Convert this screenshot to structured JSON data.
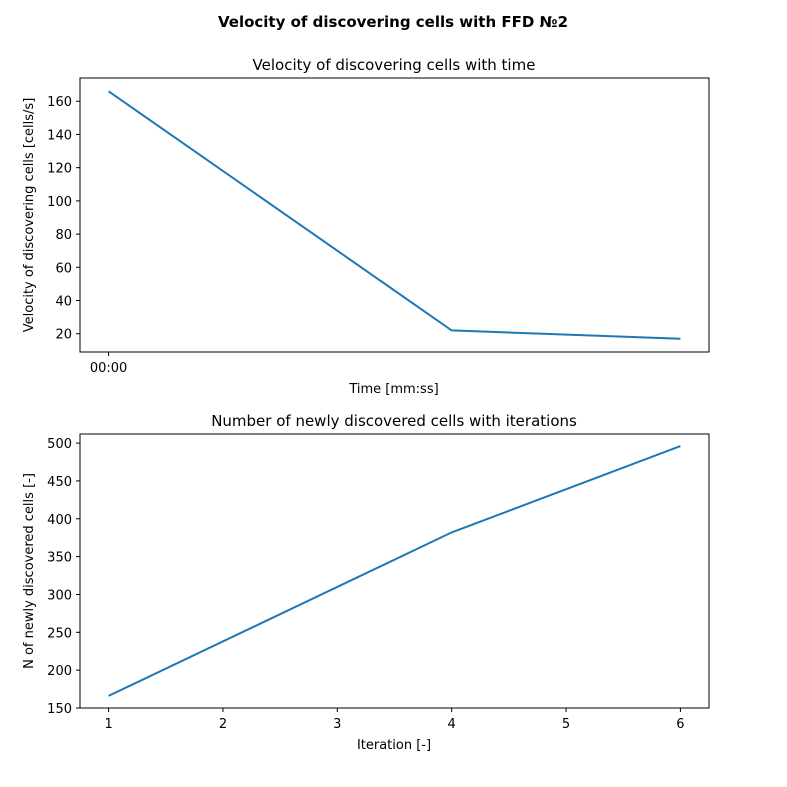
{
  "figure": {
    "suptitle": "Velocity of discovering cells with FFD №2"
  },
  "chart_data": [
    {
      "type": "line",
      "title": "Velocity of discovering cells with time",
      "xlabel": "Time [mm:ss]",
      "ylabel": "Velocity of discovering cells [cells/s]",
      "x": [
        0,
        3,
        5
      ],
      "xticks": [
        {
          "value": 0,
          "label": "00:00"
        }
      ],
      "xlim": [
        -0.25,
        5.25
      ],
      "ylim": [
        9,
        174
      ],
      "yticks": [
        20,
        40,
        60,
        80,
        100,
        120,
        140,
        160
      ],
      "series": [
        {
          "values": [
            166,
            22,
            17
          ],
          "color": "#1f77b4"
        }
      ],
      "grid": false
    },
    {
      "type": "line",
      "title": "Number of newly discovered cells with iterations",
      "xlabel": "Iteration [-]",
      "ylabel": "N of newly discovered cells [-]",
      "x": [
        1,
        4,
        6
      ],
      "xticks": [
        {
          "value": 1,
          "label": "1"
        },
        {
          "value": 2,
          "label": "2"
        },
        {
          "value": 3,
          "label": "3"
        },
        {
          "value": 4,
          "label": "4"
        },
        {
          "value": 5,
          "label": "5"
        },
        {
          "value": 6,
          "label": "6"
        }
      ],
      "xlim": [
        0.75,
        6.25
      ],
      "ylim": [
        150,
        512
      ],
      "yticks": [
        150,
        200,
        250,
        300,
        350,
        400,
        450,
        500
      ],
      "series": [
        {
          "values": [
            166,
            382,
            496
          ],
          "color": "#1f77b4"
        }
      ],
      "grid": false
    }
  ]
}
